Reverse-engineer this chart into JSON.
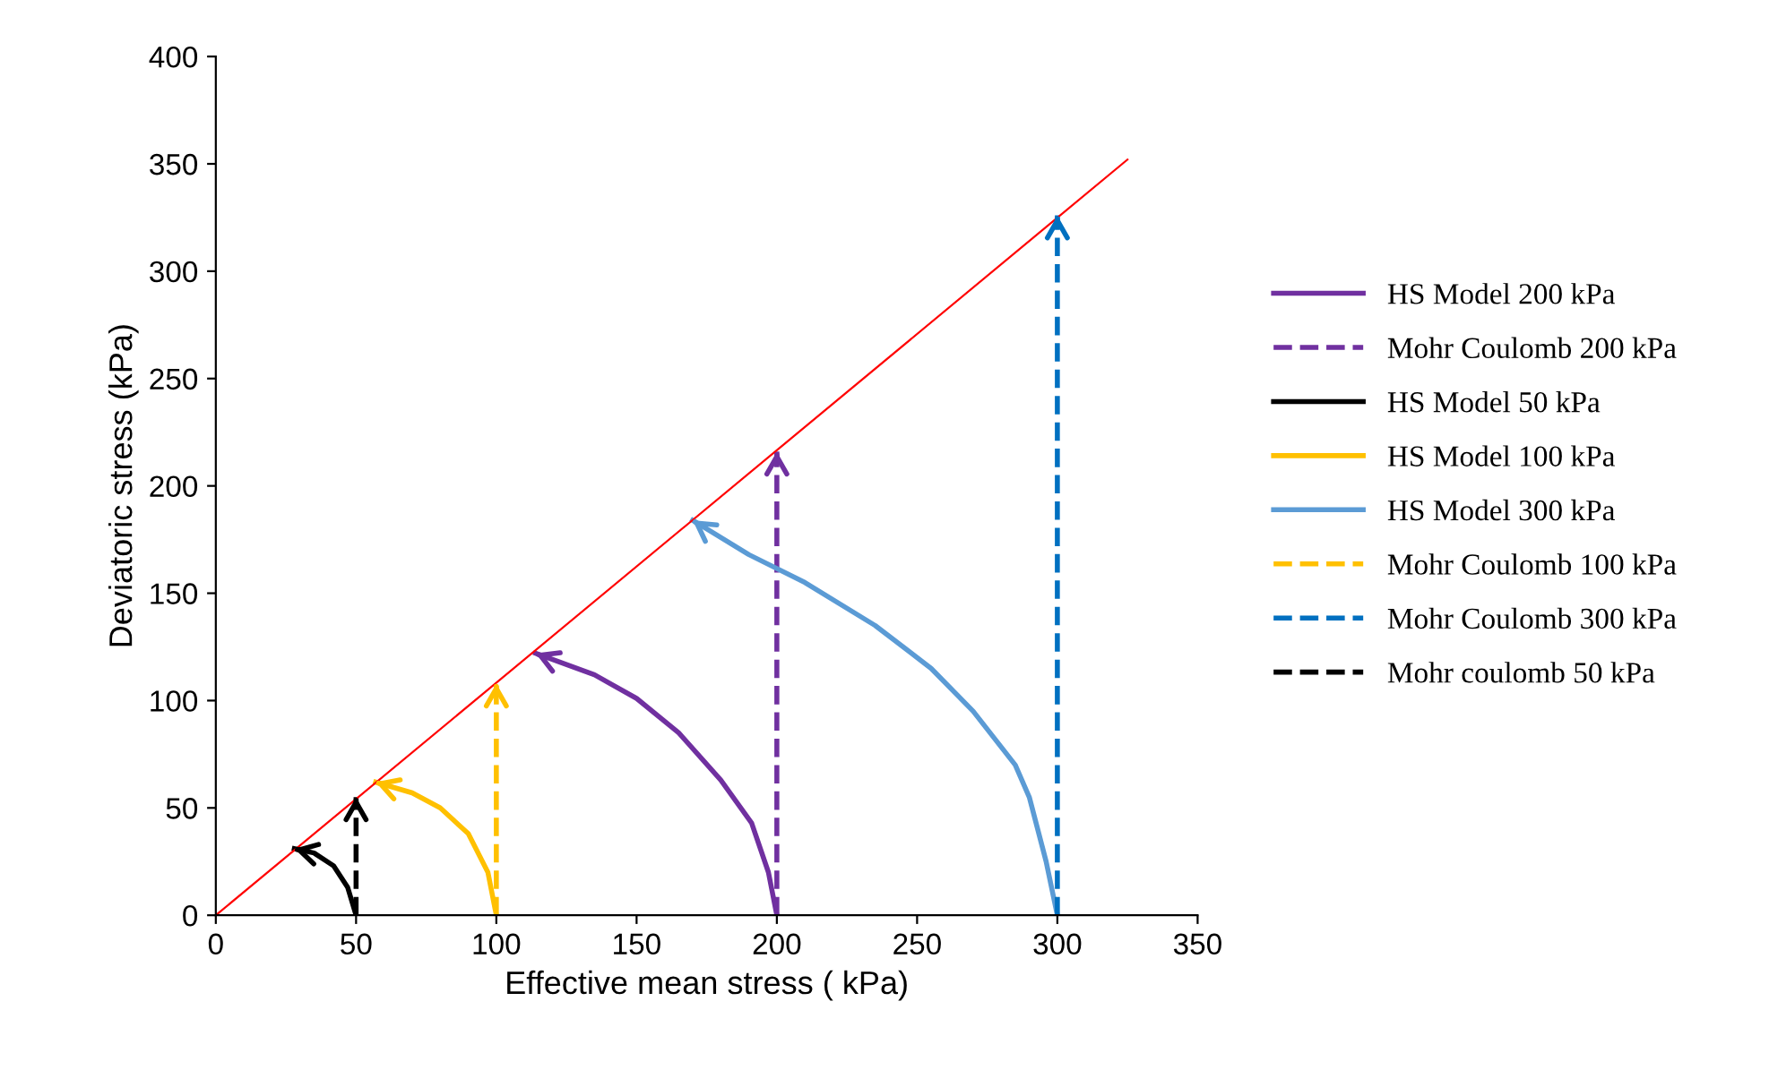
{
  "chart_data": {
    "type": "line",
    "xlabel": "Effective mean stress ( kPa)",
    "ylabel": "Deviatoric stress (kPa)",
    "xlim": [
      0,
      350
    ],
    "ylim": [
      0,
      400
    ],
    "xticks": [
      0,
      50,
      100,
      150,
      200,
      250,
      300,
      350
    ],
    "yticks": [
      0,
      50,
      100,
      150,
      200,
      250,
      300,
      350,
      400
    ],
    "grid": false,
    "legend": "right",
    "marker": "none",
    "series": [
      {
        "name": "HS Model 200 kPa",
        "color": "#7030a0",
        "line_style": "solid",
        "x": [
          200,
          197,
          191,
          180,
          165,
          150,
          135,
          114
        ],
        "values": [
          0,
          20,
          43,
          63,
          85,
          101,
          112,
          122
        ]
      },
      {
        "name": "Mohr Coulomb 200 kPa",
        "color": "#7030a0",
        "line_style": "dashed",
        "x": [
          200,
          200
        ],
        "values": [
          0,
          216
        ]
      },
      {
        "name": "HS Model 50 kPa",
        "color": "#000000",
        "line_style": "solid",
        "x": [
          50,
          47,
          42,
          35,
          28
        ],
        "values": [
          0,
          13,
          23,
          29,
          31
        ]
      },
      {
        "name": "HS Model 100 kPa",
        "color": "#ffc000",
        "line_style": "solid",
        "x": [
          100,
          97,
          90,
          80,
          70,
          57
        ],
        "values": [
          0,
          20,
          38,
          50,
          57,
          62
        ]
      },
      {
        "name": "HS Model 300 kPa",
        "color": "#5b9bd5",
        "line_style": "solid",
        "x": [
          300,
          296,
          290,
          285,
          270,
          255,
          235,
          210,
          190,
          170
        ],
        "values": [
          0,
          25,
          55,
          70,
          95,
          115,
          135,
          155,
          168,
          184
        ]
      },
      {
        "name": "Mohr Coulomb 100 kPa",
        "color": "#ffc000",
        "line_style": "dashed",
        "x": [
          100,
          100
        ],
        "values": [
          0,
          108
        ]
      },
      {
        "name": "Mohr Coulomb 300 kPa",
        "color": "#0070c0",
        "line_style": "dashed",
        "x": [
          300,
          300
        ],
        "values": [
          0,
          326
        ]
      },
      {
        "name": "Mohr coulomb 50 kPa",
        "color": "#000000",
        "line_style": "dashed",
        "x": [
          50,
          50
        ],
        "values": [
          0,
          55
        ]
      },
      {
        "color": "#ff0000",
        "line_style": "solid",
        "x": [
          0,
          325
        ],
        "values": [
          0,
          352
        ]
      }
    ]
  }
}
